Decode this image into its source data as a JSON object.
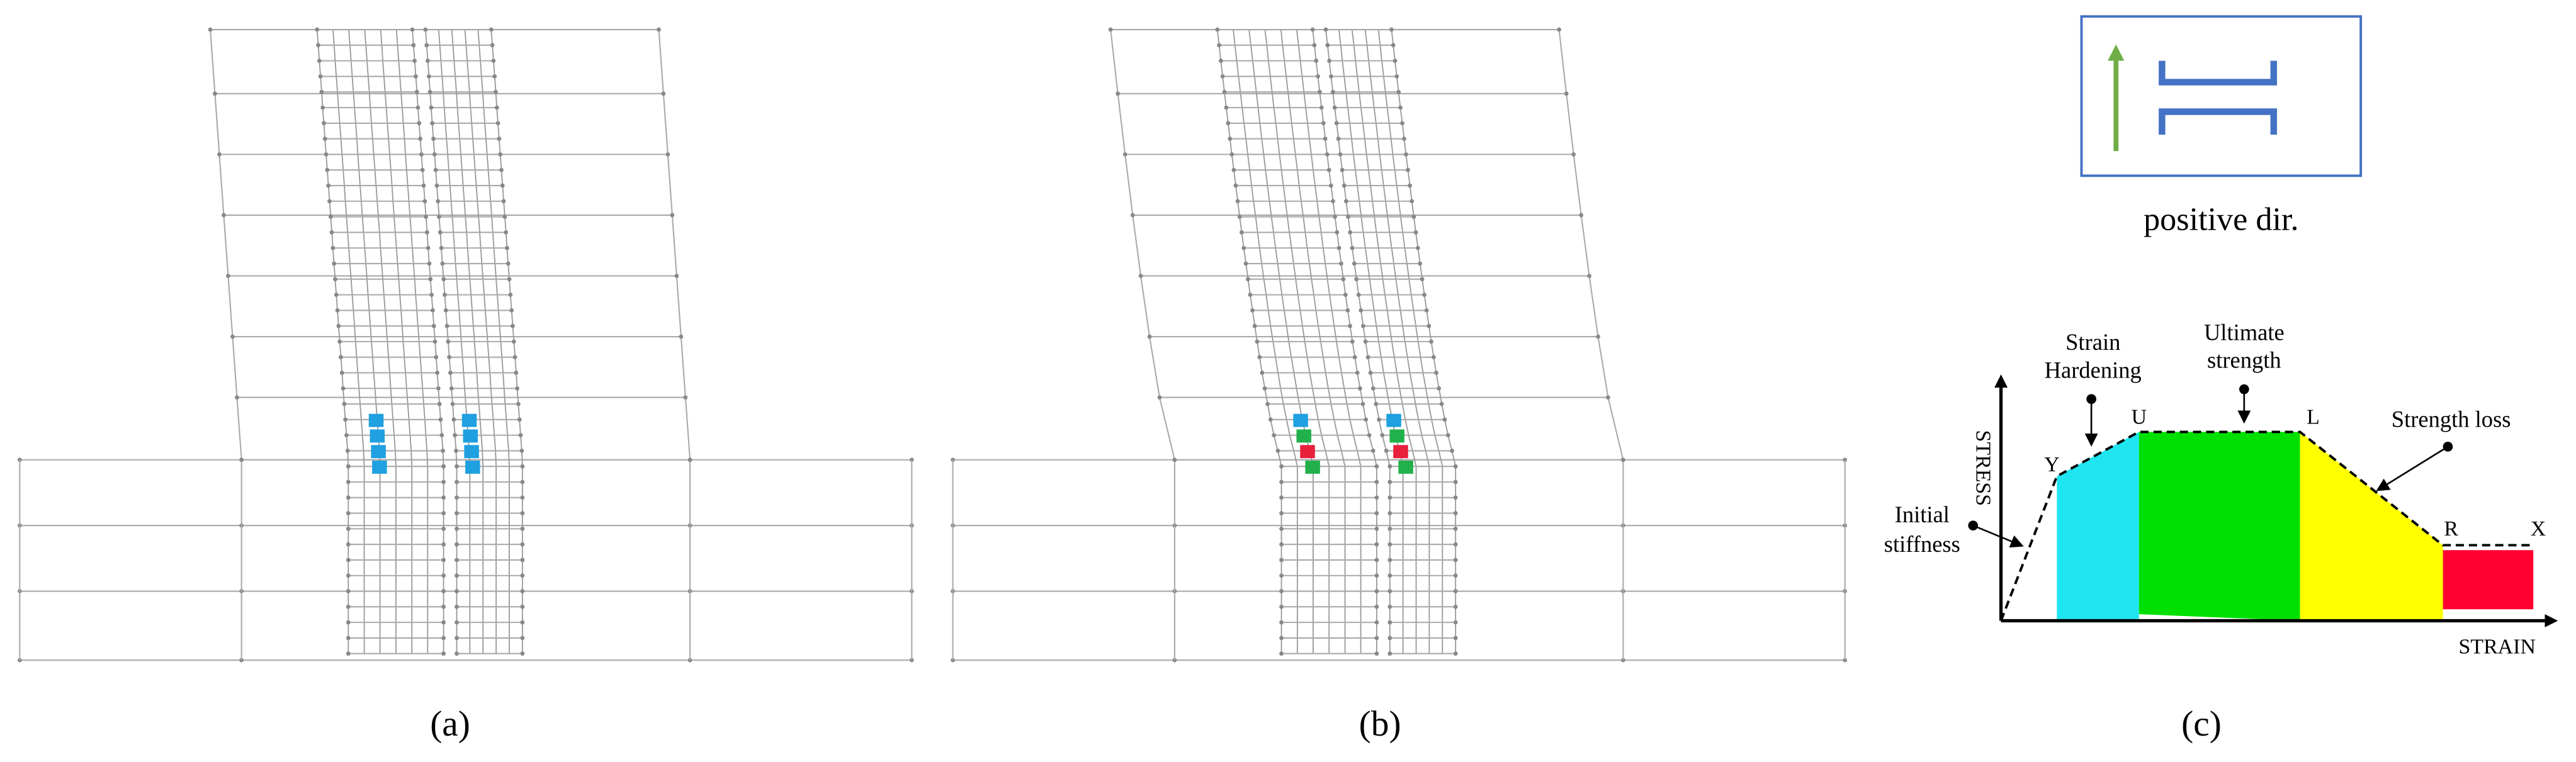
{
  "panels": [
    {
      "label": "(a)"
    },
    {
      "label": "(b)"
    },
    {
      "label": "(c)"
    }
  ],
  "direction_legend": {
    "caption": "positive dir."
  },
  "backbone_curve": {
    "y_axis_label": "STRESS",
    "x_axis_label": "STRAIN",
    "points": [
      "Y",
      "U",
      "L",
      "R",
      "X"
    ],
    "annotations": [
      {
        "lines": [
          "Strain",
          "Hardening"
        ]
      },
      {
        "lines": [
          "Ultimate",
          "strength"
        ]
      },
      {
        "lines": [
          "Strength loss"
        ]
      },
      {
        "lines": [
          "Initial",
          "stiffness"
        ]
      }
    ]
  }
}
